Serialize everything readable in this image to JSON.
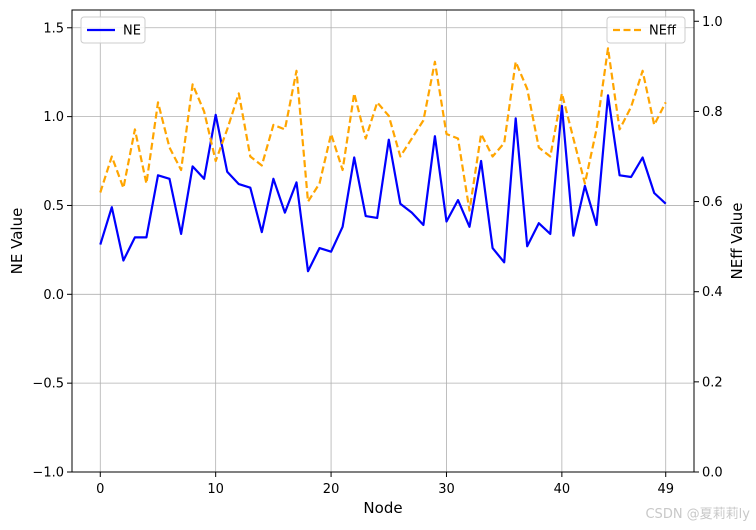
{
  "chart_data": {
    "type": "line",
    "title": "",
    "xlabel": "Node",
    "ylabel": "NE Value",
    "ylabel_right": "NEff Value",
    "xlim": [
      -2.45,
      51.45
    ],
    "ylim": [
      -1.0,
      1.6
    ],
    "ylim_right": [
      0.0,
      1.025
    ],
    "x_ticks": [
      0,
      10,
      20,
      30,
      40,
      49
    ],
    "y_ticks": [
      -1.0,
      -0.5,
      0.0,
      0.5,
      1.0,
      1.5
    ],
    "y_tick_labels": [
      "−1.0",
      "−0.5",
      "0.0",
      "0.5",
      "1.0",
      "1.5"
    ],
    "y_ticks_right": [
      0.0,
      0.2,
      0.4,
      0.6,
      0.8,
      1.0
    ],
    "grid": true,
    "x": [
      0,
      1,
      2,
      3,
      4,
      5,
      6,
      7,
      8,
      9,
      10,
      11,
      12,
      13,
      14,
      15,
      16,
      17,
      18,
      19,
      20,
      21,
      22,
      23,
      24,
      25,
      26,
      27,
      28,
      29,
      30,
      31,
      32,
      33,
      34,
      35,
      36,
      37,
      38,
      39,
      40,
      41,
      42,
      43,
      44,
      45,
      46,
      47,
      48,
      49
    ],
    "series": [
      {
        "name": "NE",
        "axis": "left",
        "color": "#0000ff",
        "style": "solid",
        "legend_position": "top-left",
        "values": [
          0.28,
          0.49,
          0.19,
          0.32,
          0.32,
          0.67,
          0.65,
          0.34,
          0.72,
          0.65,
          1.01,
          0.69,
          0.62,
          0.6,
          0.35,
          0.65,
          0.46,
          0.63,
          0.13,
          0.26,
          0.24,
          0.38,
          0.77,
          0.44,
          0.43,
          0.87,
          0.51,
          0.46,
          0.39,
          0.89,
          0.41,
          0.53,
          0.38,
          0.75,
          0.26,
          0.18,
          0.99,
          0.27,
          0.4,
          0.34,
          1.06,
          0.33,
          0.61,
          0.39,
          1.12,
          0.67,
          0.66,
          0.77,
          0.57,
          0.51
        ]
      },
      {
        "name": "NEff",
        "axis": "right",
        "color": "#ffa500",
        "style": "dashed",
        "legend_position": "top-right",
        "values": [
          0.62,
          0.7,
          0.63,
          0.76,
          0.64,
          0.82,
          0.72,
          0.67,
          0.86,
          0.8,
          0.69,
          0.76,
          0.84,
          0.7,
          0.68,
          0.77,
          0.76,
          0.89,
          0.6,
          0.64,
          0.75,
          0.67,
          0.84,
          0.74,
          0.82,
          0.79,
          0.7,
          0.74,
          0.78,
          0.91,
          0.75,
          0.74,
          0.58,
          0.75,
          0.7,
          0.73,
          0.91,
          0.85,
          0.72,
          0.7,
          0.84,
          0.74,
          0.64,
          0.76,
          0.94,
          0.76,
          0.81,
          0.89,
          0.77,
          0.82
        ]
      }
    ]
  },
  "watermark": "CSDN @夏莉莉ly"
}
